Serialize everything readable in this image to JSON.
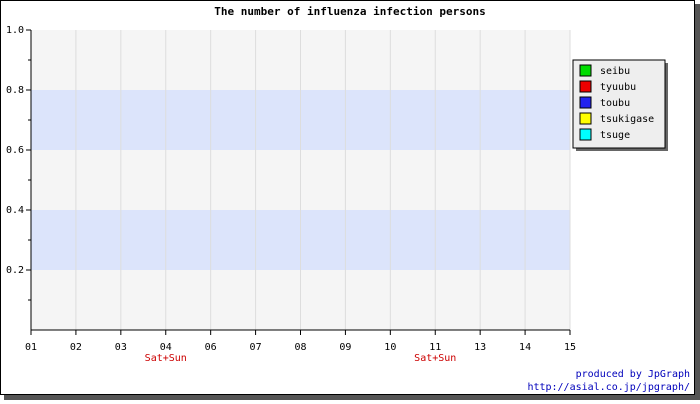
{
  "chart_data": {
    "type": "line",
    "title": "The number of influenza infection persons",
    "categories": [
      "01",
      "02",
      "03",
      "04",
      "06",
      "07",
      "08",
      "09",
      "10",
      "11",
      "13",
      "14",
      "15"
    ],
    "category_notes": [
      null,
      null,
      null,
      "Sat+Sun",
      null,
      null,
      null,
      null,
      null,
      "Sat+Sun",
      null,
      null,
      null
    ],
    "category_note_color": "#cc0000",
    "series": [
      {
        "name": "seibu",
        "color": "#00dd00"
      },
      {
        "name": "tyuubu",
        "color": "#ee0000"
      },
      {
        "name": "toubu",
        "color": "#2222ee"
      },
      {
        "name": "tsukigase",
        "color": "#ffff00"
      },
      {
        "name": "tsuge",
        "color": "#00ffff"
      }
    ],
    "ylim": [
      0,
      1
    ],
    "yticks": [
      0.2,
      0.4,
      0.6,
      0.8,
      {
        "value": 1,
        "label": "1.0"
      }
    ],
    "yminor_step": 0.1,
    "grid": true,
    "bands": [
      [
        0.2,
        0.4
      ],
      [
        0.6,
        0.8
      ]
    ],
    "band_color": "#dce4fb",
    "plot_background": "#f5f5f5",
    "legend_position": "right",
    "footer": [
      "produced by JpGraph",
      "http://asial.co.jp/jpgraph/"
    ],
    "footer_color": "#0000bb"
  }
}
